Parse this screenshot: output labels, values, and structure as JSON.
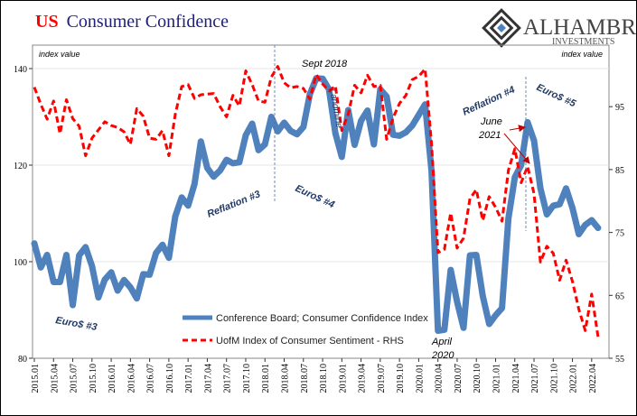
{
  "title": {
    "prefix": "US",
    "main": "Consumer Confidence"
  },
  "logo": {
    "name": "ALHAMBRA",
    "sub": "INVESTMENTS"
  },
  "colors": {
    "prefix": "#ff0000",
    "title": "#1f1f7a",
    "cb": "#4f81bd",
    "umich": "#ff0000",
    "annotation": "#1f3864",
    "arrow": "#c00000"
  },
  "chart_data": {
    "type": "line",
    "title": "US Consumer Confidence",
    "y_left": {
      "label": "index value",
      "range": [
        80,
        145
      ],
      "ticks": [
        80,
        100,
        120,
        140
      ]
    },
    "y_right": {
      "label": "index value",
      "range": [
        55,
        102
      ],
      "ticks": [
        55,
        65,
        75,
        85,
        95
      ]
    },
    "grid": true,
    "legend": "bottom-center",
    "x_start": "2015.01",
    "x_tick_labels": [
      "2015.01",
      "2015.04",
      "2015.07",
      "2015.10",
      "2016.01",
      "2016.04",
      "2016.07",
      "2016.10",
      "2017.01",
      "2017.04",
      "2017.07",
      "2017.10",
      "2018.01",
      "2018.04",
      "2018.07",
      "2018.10",
      "2019.01",
      "2019.04",
      "2019.07",
      "2019.10",
      "2020.01",
      "2020.04",
      "2020.07",
      "2020.10",
      "2021.01",
      "2021.04",
      "2021.07",
      "2021.10",
      "2022.01",
      "2022.04"
    ],
    "series": [
      {
        "name": "Conference Board; Consumer Confidence Index",
        "axis": "left",
        "values": [
          103.8,
          98.8,
          101.4,
          95.8,
          95.8,
          101.4,
          91.0,
          101.3,
          103.0,
          99.1,
          92.6,
          96.3,
          97.8,
          94.0,
          96.2,
          94.7,
          92.4,
          97.4,
          97.3,
          101.8,
          103.5,
          100.8,
          109.4,
          113.3,
          111.6,
          116.1,
          124.9,
          119.4,
          117.6,
          118.9,
          121.1,
          120.4,
          120.6,
          126.2,
          128.6,
          123.1,
          124.3,
          130.0,
          127.0,
          128.8,
          127.1,
          126.4,
          127.9,
          134.7,
          138.0,
          137.9,
          135.7,
          126.6,
          121.7,
          131.4,
          124.2,
          129.2,
          131.3,
          124.3,
          135.7,
          134.2,
          126.3,
          126.1,
          126.8,
          128.2,
          130.4,
          132.6,
          118.8,
          85.7,
          85.9,
          98.3,
          91.7,
          86.3,
          101.3,
          101.4,
          92.9,
          87.1,
          88.9,
          90.4,
          109.0,
          117.5,
          120.0,
          128.9,
          125.1,
          115.2,
          109.8,
          111.6,
          111.9,
          115.2,
          111.1,
          105.7,
          107.6,
          108.6,
          107.0
        ]
      },
      {
        "name": "UofM Index of Consumer Sentiment - RHS",
        "axis": "right",
        "values": [
          98.1,
          95.4,
          93.0,
          95.9,
          90.7,
          96.1,
          93.1,
          91.9,
          87.2,
          90.0,
          91.3,
          92.6,
          92.0,
          91.7,
          91.0,
          89.0,
          94.7,
          93.5,
          90.0,
          89.8,
          91.2,
          87.2,
          93.8,
          98.2,
          98.5,
          96.3,
          96.9,
          97.0,
          97.1,
          95.0,
          93.4,
          96.8,
          95.1,
          100.7,
          98.5,
          95.9,
          95.7,
          99.7,
          101.4,
          98.8,
          98.0,
          98.2,
          97.9,
          96.2,
          100.1,
          98.6,
          97.5,
          98.3,
          91.2,
          93.8,
          98.4,
          97.2,
          100.0,
          98.2,
          98.4,
          89.8,
          93.2,
          95.5,
          96.8,
          99.3,
          99.8,
          101.0,
          89.1,
          71.8,
          72.3,
          78.1,
          72.5,
          74.1,
          80.4,
          81.8,
          76.9,
          80.7,
          79.0,
          76.8,
          84.9,
          88.3,
          82.9,
          85.5,
          81.2,
          70.3,
          72.8,
          71.7,
          67.4,
          70.6,
          67.2,
          62.8,
          59.4,
          65.2,
          58.4
        ]
      }
    ],
    "annotations": [
      "Euro$ #3",
      "Reflation #3",
      "Euro$ #4",
      "Sept 2018",
      "Landmine",
      "April 2020",
      "Reflation #4",
      "June 2021",
      "Euro$ #5"
    ]
  }
}
